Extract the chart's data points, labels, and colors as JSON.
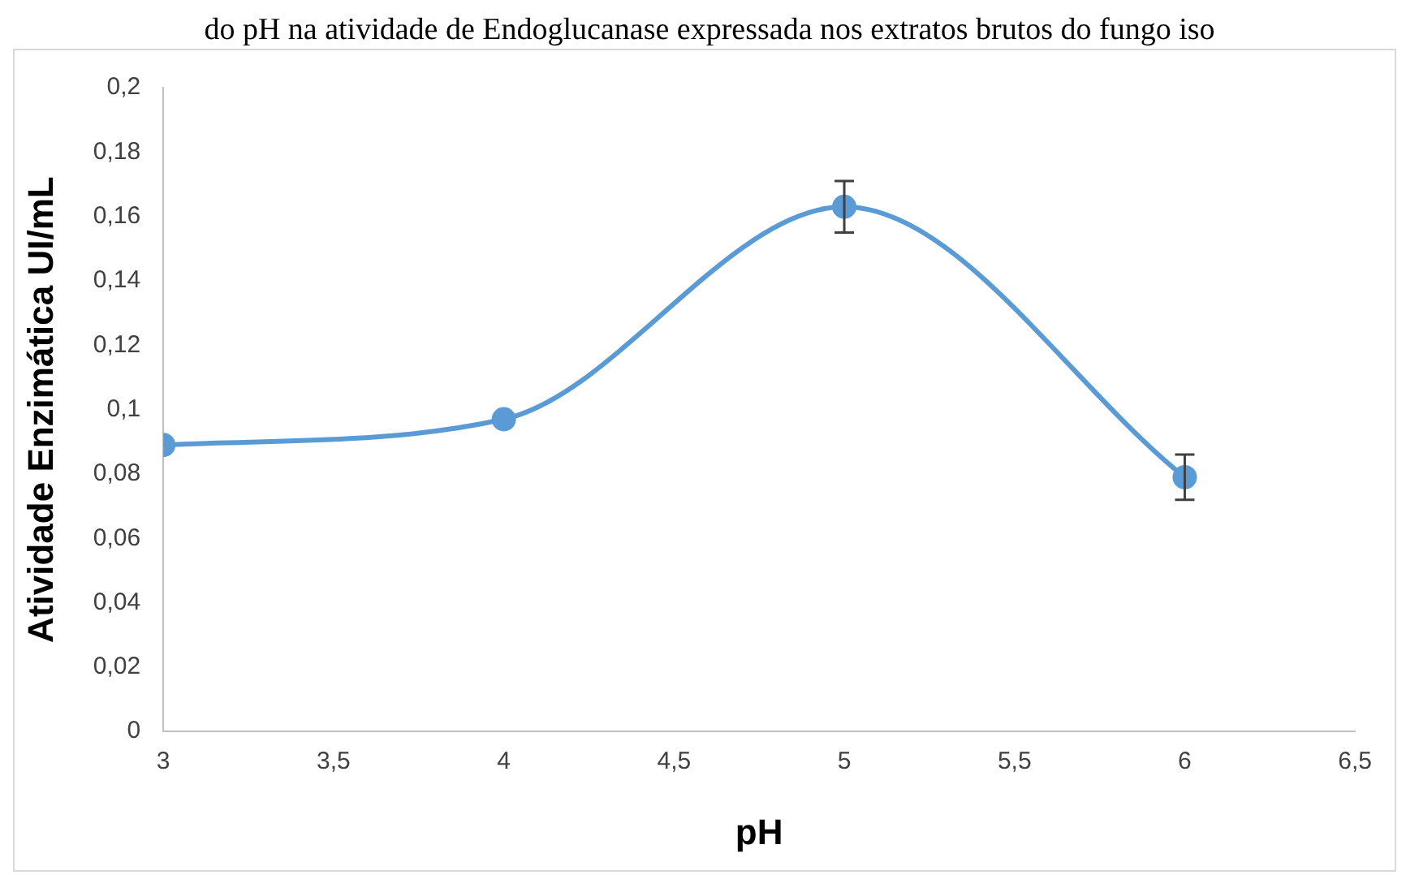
{
  "chart_data": {
    "type": "line",
    "title": "do pH na atividade de Endoglucanase expressada nos extratos brutos do fungo iso",
    "xlabel": "pH",
    "ylabel": "Atividade Enzimática UI/mL",
    "x": [
      3,
      4,
      5,
      6
    ],
    "series": [
      {
        "color": "#5b9bd5",
        "values": [
          0.089,
          0.097,
          0.163,
          0.079
        ],
        "errors": [
          null,
          null,
          0.008,
          0.007
        ]
      }
    ],
    "xlim": [
      3,
      6.5
    ],
    "xticks": [
      3,
      {
        "value": 3.5,
        "label": "3,5"
      },
      4,
      {
        "value": 4.5,
        "label": "4,5"
      },
      5,
      {
        "value": 5.5,
        "label": "5,5"
      },
      6,
      {
        "value": 6.5,
        "label": "6,5"
      }
    ],
    "ylim": [
      0,
      0.2
    ],
    "yticks": [
      0,
      {
        "value": 0.02,
        "label": "0,02"
      },
      {
        "value": 0.04,
        "label": "0,04"
      },
      {
        "value": 0.06,
        "label": "0,06"
      },
      {
        "value": 0.08,
        "label": "0,08"
      },
      {
        "value": 0.1,
        "label": "0,1"
      },
      {
        "value": 0.12,
        "label": "0,12"
      },
      {
        "value": 0.14,
        "label": "0,14"
      },
      {
        "value": 0.16,
        "label": "0,16"
      },
      {
        "value": 0.18,
        "label": "0,18"
      },
      {
        "value": 0.2,
        "label": "0,2"
      }
    ],
    "grid": false,
    "legend": false,
    "marker": "circle",
    "line_style": "solid"
  }
}
